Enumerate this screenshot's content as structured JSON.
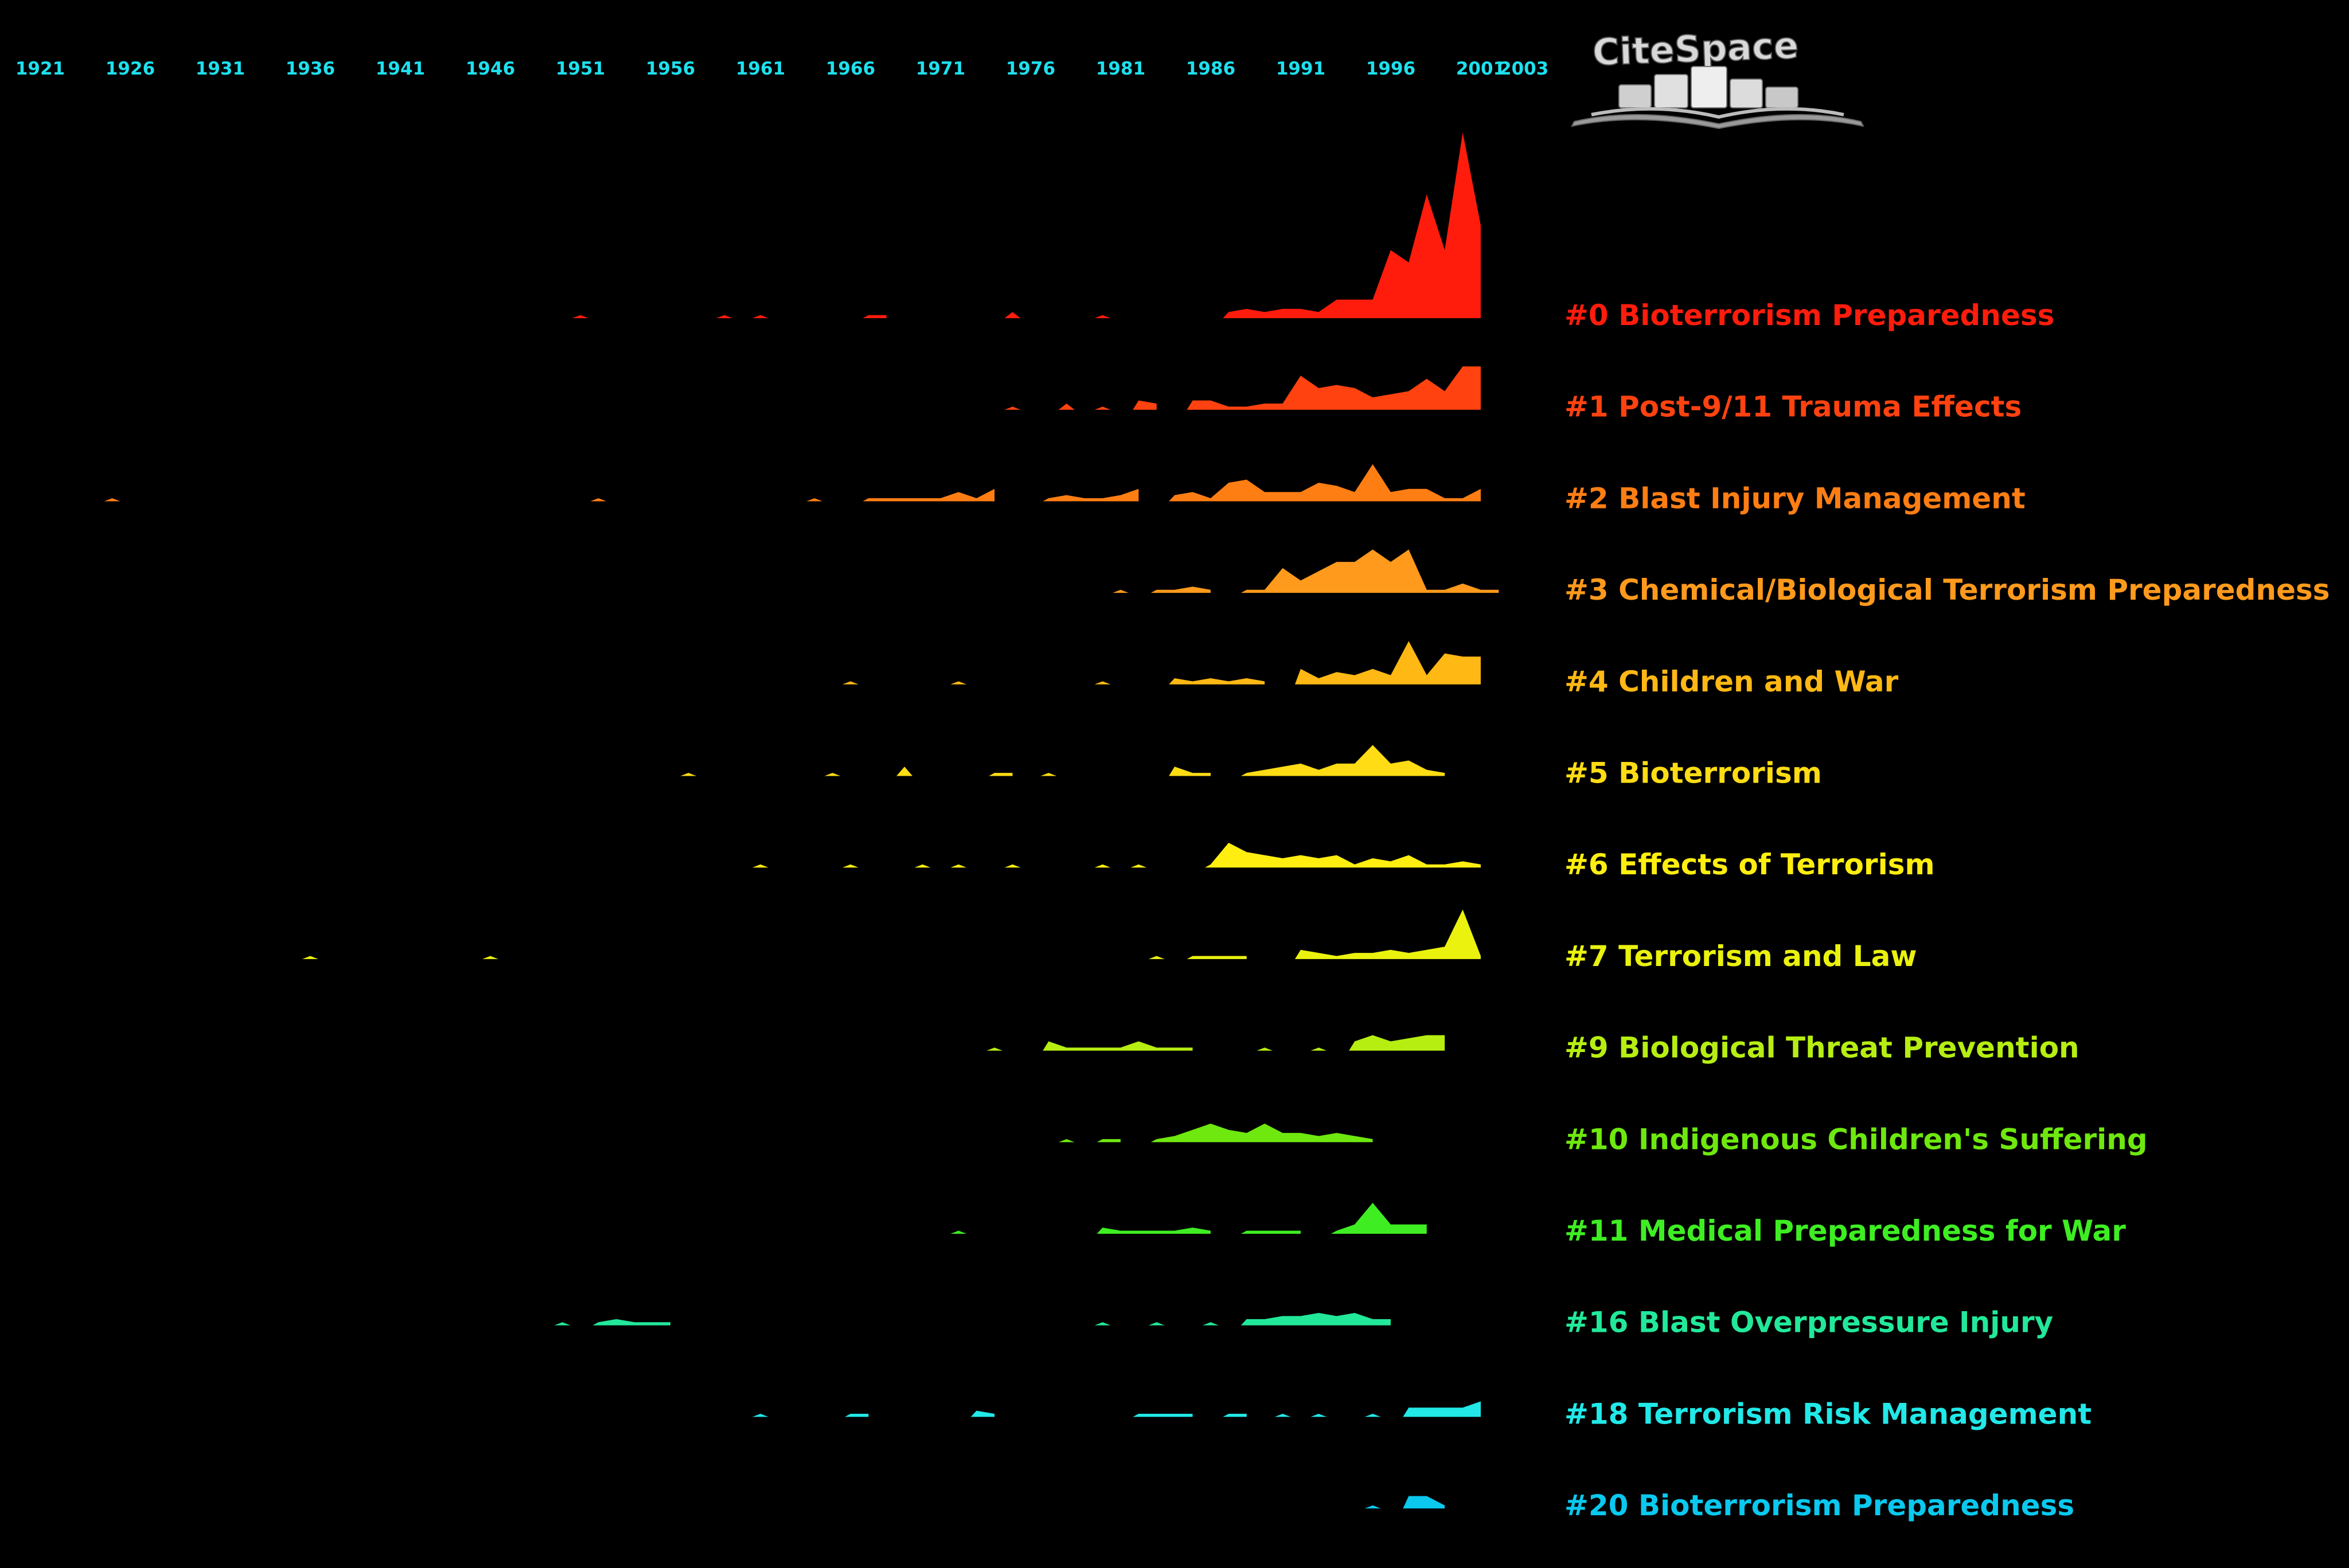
{
  "logo": {
    "text": "CiteSpace",
    "color": "#d8d8d8"
  },
  "chart_data": {
    "type": "area",
    "background": "#000000",
    "tick_color": "#1ee0ee",
    "x_ticks": [
      "1921",
      "1926",
      "1931",
      "1936",
      "1941",
      "1946",
      "1951",
      "1956",
      "1961",
      "1966",
      "1971",
      "1976",
      "1981",
      "1986",
      "1991",
      "1996",
      "2001",
      "2003"
    ],
    "x_range": [
      1921,
      2003
    ],
    "series": [
      {
        "name": "#0 Bioterrorism Preparedness",
        "color": "#ff1c0c",
        "points": [
          [
            1951,
            1
          ],
          [
            1959,
            1
          ],
          [
            1961,
            1
          ],
          [
            1967,
            1
          ],
          [
            1968,
            1
          ],
          [
            1975,
            2
          ],
          [
            1980,
            1
          ],
          [
            1987,
            2
          ],
          [
            1988,
            3
          ],
          [
            1989,
            2
          ],
          [
            1990,
            3
          ],
          [
            1991,
            3
          ],
          [
            1992,
            2
          ],
          [
            1993,
            6
          ],
          [
            1994,
            6
          ],
          [
            1995,
            6
          ],
          [
            1996,
            22
          ],
          [
            1997,
            18
          ],
          [
            1998,
            40
          ],
          [
            1999,
            22
          ],
          [
            2000,
            60
          ],
          [
            2001,
            30
          ]
        ]
      },
      {
        "name": "#1 Post-9/11 Trauma Effects",
        "color": "#ff4210",
        "points": [
          [
            1975,
            1
          ],
          [
            1978,
            2
          ],
          [
            1980,
            1
          ],
          [
            1982,
            3
          ],
          [
            1983,
            2
          ],
          [
            1985,
            3
          ],
          [
            1986,
            3
          ],
          [
            1987,
            1
          ],
          [
            1988,
            1
          ],
          [
            1989,
            2
          ],
          [
            1990,
            2
          ],
          [
            1991,
            11
          ],
          [
            1992,
            7
          ],
          [
            1993,
            8
          ],
          [
            1994,
            7
          ],
          [
            1995,
            4
          ],
          [
            1996,
            5
          ],
          [
            1997,
            6
          ],
          [
            1998,
            10
          ],
          [
            1999,
            6
          ],
          [
            2000,
            14
          ],
          [
            2001,
            14
          ]
        ]
      },
      {
        "name": "#2 Blast Injury Management",
        "color": "#ff7e14",
        "points": [
          [
            1925,
            1
          ],
          [
            1952,
            1
          ],
          [
            1964,
            1
          ],
          [
            1967,
            1
          ],
          [
            1968,
            1
          ],
          [
            1969,
            1
          ],
          [
            1970,
            1
          ],
          [
            1971,
            1
          ],
          [
            1972,
            3
          ],
          [
            1973,
            1
          ],
          [
            1974,
            4
          ],
          [
            1977,
            1
          ],
          [
            1978,
            2
          ],
          [
            1979,
            1
          ],
          [
            1980,
            1
          ],
          [
            1981,
            2
          ],
          [
            1982,
            4
          ],
          [
            1984,
            2
          ],
          [
            1985,
            3
          ],
          [
            1986,
            1
          ],
          [
            1987,
            6
          ],
          [
            1988,
            7
          ],
          [
            1989,
            3
          ],
          [
            1990,
            3
          ],
          [
            1991,
            3
          ],
          [
            1992,
            6
          ],
          [
            1993,
            5
          ],
          [
            1994,
            3
          ],
          [
            1995,
            12
          ],
          [
            1996,
            3
          ],
          [
            1997,
            4
          ],
          [
            1998,
            4
          ],
          [
            1999,
            1
          ],
          [
            2000,
            1
          ],
          [
            2001,
            4
          ]
        ]
      },
      {
        "name": "#3 Chemical/Biological Terrorism Preparedness",
        "color": "#ff9a1c",
        "points": [
          [
            1981,
            1
          ],
          [
            1983,
            1
          ],
          [
            1984,
            1
          ],
          [
            1985,
            2
          ],
          [
            1986,
            1
          ],
          [
            1988,
            1
          ],
          [
            1989,
            1
          ],
          [
            1990,
            8
          ],
          [
            1991,
            4
          ],
          [
            1992,
            7
          ],
          [
            1993,
            10
          ],
          [
            1994,
            10
          ],
          [
            1995,
            14
          ],
          [
            1996,
            10
          ],
          [
            1997,
            14
          ],
          [
            1998,
            1
          ],
          [
            1999,
            1
          ],
          [
            2000,
            3
          ],
          [
            2001,
            1
          ],
          [
            2002,
            1
          ]
        ]
      },
      {
        "name": "#4 Children and War",
        "color": "#ffb814",
        "points": [
          [
            1966,
            1
          ],
          [
            1972,
            1
          ],
          [
            1980,
            1
          ],
          [
            1984,
            2
          ],
          [
            1985,
            1
          ],
          [
            1986,
            2
          ],
          [
            1987,
            1
          ],
          [
            1988,
            2
          ],
          [
            1989,
            1
          ],
          [
            1991,
            5
          ],
          [
            1992,
            2
          ],
          [
            1993,
            4
          ],
          [
            1994,
            3
          ],
          [
            1995,
            5
          ],
          [
            1996,
            3
          ],
          [
            1997,
            14
          ],
          [
            1998,
            3
          ],
          [
            1999,
            10
          ],
          [
            2000,
            9
          ],
          [
            2001,
            9
          ]
        ]
      },
      {
        "name": "#5 Bioterrorism",
        "color": "#ffdc14",
        "points": [
          [
            1957,
            1
          ],
          [
            1965,
            1
          ],
          [
            1969,
            3
          ],
          [
            1974,
            1
          ],
          [
            1975,
            1
          ],
          [
            1977,
            1
          ],
          [
            1984,
            3
          ],
          [
            1985,
            1
          ],
          [
            1986,
            1
          ],
          [
            1988,
            1
          ],
          [
            1989,
            2
          ],
          [
            1990,
            3
          ],
          [
            1991,
            4
          ],
          [
            1992,
            2
          ],
          [
            1993,
            4
          ],
          [
            1994,
            4
          ],
          [
            1995,
            10
          ],
          [
            1996,
            4
          ],
          [
            1997,
            5
          ],
          [
            1998,
            2
          ],
          [
            1999,
            1
          ]
        ]
      },
      {
        "name": "#6 Effects of Terrorism",
        "color": "#ffee10",
        "points": [
          [
            1961,
            1
          ],
          [
            1966,
            1
          ],
          [
            1970,
            1
          ],
          [
            1972,
            1
          ],
          [
            1975,
            1
          ],
          [
            1980,
            1
          ],
          [
            1982,
            1
          ],
          [
            1986,
            1
          ],
          [
            1987,
            8
          ],
          [
            1988,
            5
          ],
          [
            1989,
            4
          ],
          [
            1990,
            3
          ],
          [
            1991,
            4
          ],
          [
            1992,
            3
          ],
          [
            1993,
            4
          ],
          [
            1994,
            1
          ],
          [
            1995,
            3
          ],
          [
            1996,
            2
          ],
          [
            1997,
            4
          ],
          [
            1998,
            1
          ],
          [
            1999,
            1
          ],
          [
            2000,
            2
          ],
          [
            2001,
            1
          ]
        ]
      },
      {
        "name": "#7 Terrorism and Law",
        "color": "#eaf20e",
        "points": [
          [
            1936,
            1
          ],
          [
            1946,
            1
          ],
          [
            1983,
            1
          ],
          [
            1985,
            1
          ],
          [
            1986,
            1
          ],
          [
            1987,
            1
          ],
          [
            1988,
            1
          ],
          [
            1991,
            3
          ],
          [
            1992,
            2
          ],
          [
            1993,
            1
          ],
          [
            1994,
            2
          ],
          [
            1995,
            2
          ],
          [
            1996,
            3
          ],
          [
            1997,
            2
          ],
          [
            1998,
            3
          ],
          [
            1999,
            4
          ],
          [
            2000,
            16
          ],
          [
            2001,
            1
          ]
        ]
      },
      {
        "name": "#9 Biological Threat Prevention",
        "color": "#b6ee12",
        "points": [
          [
            1974,
            1
          ],
          [
            1977,
            3
          ],
          [
            1978,
            1
          ],
          [
            1979,
            1
          ],
          [
            1980,
            1
          ],
          [
            1981,
            1
          ],
          [
            1982,
            3
          ],
          [
            1983,
            1
          ],
          [
            1984,
            1
          ],
          [
            1985,
            1
          ],
          [
            1989,
            1
          ],
          [
            1992,
            1
          ],
          [
            1994,
            3
          ],
          [
            1995,
            5
          ],
          [
            1996,
            3
          ],
          [
            1997,
            4
          ],
          [
            1998,
            5
          ],
          [
            1999,
            5
          ]
        ]
      },
      {
        "name": "#10 Indigenous Children's Suffering",
        "color": "#6ee80e",
        "points": [
          [
            1978,
            1
          ],
          [
            1980,
            1
          ],
          [
            1981,
            1
          ],
          [
            1983,
            1
          ],
          [
            1984,
            2
          ],
          [
            1985,
            4
          ],
          [
            1986,
            6
          ],
          [
            1987,
            4
          ],
          [
            1988,
            3
          ],
          [
            1989,
            6
          ],
          [
            1990,
            3
          ],
          [
            1991,
            3
          ],
          [
            1992,
            2
          ],
          [
            1993,
            3
          ],
          [
            1994,
            2
          ],
          [
            1995,
            1
          ]
        ]
      },
      {
        "name": "#11 Medical Preparedness for War",
        "color": "#3eee22",
        "points": [
          [
            1972,
            1
          ],
          [
            1980,
            2
          ],
          [
            1981,
            1
          ],
          [
            1982,
            1
          ],
          [
            1983,
            1
          ],
          [
            1984,
            1
          ],
          [
            1985,
            2
          ],
          [
            1986,
            1
          ],
          [
            1988,
            1
          ],
          [
            1989,
            1
          ],
          [
            1990,
            1
          ],
          [
            1991,
            1
          ],
          [
            1993,
            1
          ],
          [
            1994,
            3
          ],
          [
            1995,
            10
          ],
          [
            1996,
            3
          ],
          [
            1997,
            3
          ],
          [
            1998,
            3
          ]
        ]
      },
      {
        "name": "#16 Blast Overpressure Injury",
        "color": "#22e89a",
        "points": [
          [
            1950,
            1
          ],
          [
            1952,
            1
          ],
          [
            1953,
            2
          ],
          [
            1954,
            1
          ],
          [
            1955,
            1
          ],
          [
            1956,
            1
          ],
          [
            1980,
            1
          ],
          [
            1983,
            1
          ],
          [
            1986,
            1
          ],
          [
            1988,
            2
          ],
          [
            1989,
            2
          ],
          [
            1990,
            3
          ],
          [
            1991,
            3
          ],
          [
            1992,
            4
          ],
          [
            1993,
            3
          ],
          [
            1994,
            4
          ],
          [
            1995,
            2
          ],
          [
            1996,
            2
          ]
        ]
      },
      {
        "name": "#18 Terrorism Risk Management",
        "color": "#22e8e8",
        "points": [
          [
            1961,
            1
          ],
          [
            1966,
            1
          ],
          [
            1967,
            1
          ],
          [
            1973,
            2
          ],
          [
            1974,
            1
          ],
          [
            1982,
            1
          ],
          [
            1983,
            1
          ],
          [
            1984,
            1
          ],
          [
            1985,
            1
          ],
          [
            1987,
            1
          ],
          [
            1988,
            1
          ],
          [
            1990,
            1
          ],
          [
            1992,
            1
          ],
          [
            1995,
            1
          ],
          [
            1997,
            3
          ],
          [
            1998,
            3
          ],
          [
            1999,
            3
          ],
          [
            2000,
            3
          ],
          [
            2001,
            5
          ]
        ]
      },
      {
        "name": "#20 Bioterrorism Preparedness",
        "color": "#0ac8ee",
        "points": [
          [
            1995,
            1
          ],
          [
            1997,
            4
          ],
          [
            1998,
            4
          ],
          [
            1999,
            1
          ]
        ]
      }
    ]
  }
}
